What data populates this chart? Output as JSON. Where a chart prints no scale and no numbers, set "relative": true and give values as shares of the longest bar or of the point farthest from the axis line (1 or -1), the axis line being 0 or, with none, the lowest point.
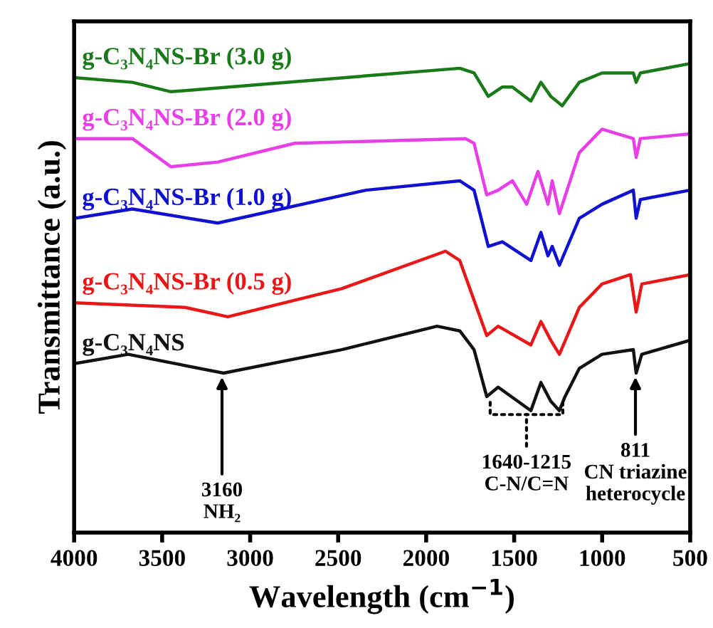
{
  "chart_data": {
    "type": "line",
    "relative": true,
    "xlabel": "Wavelength (cm$^{−1}$)",
    "ylabel": "Transmittance (a.u.)",
    "xlim": [
      4000,
      500
    ],
    "xticks": [
      4000,
      3500,
      3000,
      2500,
      2000,
      1500,
      1000,
      500
    ],
    "legend": false,
    "grid": false,
    "tick_labels": "x",
    "series": [
      {
        "name": "g-C₃N₄NS-Br (3.0 g)",
        "color": "#1a7a1a",
        "x": [
          4000,
          3669,
          3450,
          1809,
          1728,
          1647,
          1567,
          1510,
          1405,
          1348,
          1292,
          1227,
          1130,
          1001,
          823,
          807,
          783,
          500
        ],
        "values": [
          0.97,
          0.96,
          0.94,
          0.99,
          0.98,
          0.93,
          0.95,
          0.95,
          0.92,
          0.96,
          0.93,
          0.91,
          0.96,
          0.98,
          0.98,
          0.96,
          0.98,
          1.0
        ]
      },
      {
        "name": "g-C₃N₄NS-Br (2.0 g)",
        "color": "#e83ee8",
        "x": [
          4000,
          3669,
          3450,
          3184,
          2747,
          1777,
          1728,
          1656,
          1591,
          1510,
          1429,
          1365,
          1308,
          1284,
          1243,
          1130,
          1001,
          823,
          807,
          783,
          500
        ],
        "values": [
          0.84,
          0.84,
          0.78,
          0.79,
          0.83,
          0.84,
          0.83,
          0.72,
          0.73,
          0.75,
          0.7,
          0.77,
          0.7,
          0.75,
          0.68,
          0.81,
          0.86,
          0.84,
          0.8,
          0.84,
          0.85
        ]
      },
      {
        "name": "g-C₃N₄NS-Br (1.0 g)",
        "color": "#1010d0",
        "x": [
          4000,
          3669,
          3184,
          2343,
          1809,
          1728,
          1647,
          1567,
          1405,
          1348,
          1308,
          1284,
          1243,
          1130,
          1001,
          823,
          807,
          783,
          500
        ],
        "values": [
          0.67,
          0.69,
          0.66,
          0.73,
          0.75,
          0.73,
          0.61,
          0.62,
          0.58,
          0.64,
          0.59,
          0.61,
          0.57,
          0.67,
          0.7,
          0.73,
          0.67,
          0.71,
          0.73
        ]
      },
      {
        "name": "g-C₃N₄NS-Br (0.5 g)",
        "color": "#e81818",
        "x": [
          4000,
          3369,
          3127,
          2480,
          1890,
          1809,
          1656,
          1591,
          1405,
          1348,
          1292,
          1243,
          1130,
          1001,
          839,
          807,
          775,
          500
        ],
        "values": [
          0.49,
          0.48,
          0.46,
          0.52,
          0.6,
          0.58,
          0.42,
          0.44,
          0.4,
          0.45,
          0.41,
          0.38,
          0.48,
          0.53,
          0.55,
          0.47,
          0.53,
          0.55
        ]
      },
      {
        "name": "g-C₃N₄NS",
        "color": "#111111",
        "x": [
          4000,
          3693,
          3151,
          2480,
          1938,
          1809,
          1728,
          1656,
          1591,
          1405,
          1348,
          1292,
          1243,
          1211,
          1130,
          1001,
          823,
          807,
          775,
          500
        ],
        "values": [
          0.36,
          0.38,
          0.34,
          0.39,
          0.44,
          0.43,
          0.39,
          0.29,
          0.31,
          0.26,
          0.32,
          0.28,
          0.26,
          0.29,
          0.35,
          0.38,
          0.39,
          0.34,
          0.38,
          0.41
        ]
      }
    ],
    "annotations": [
      {
        "text": "3160\nNH₂",
        "x": 3160,
        "y": 0.34
      },
      {
        "text": "1640-1215\nC-N/C=N",
        "x": 1430,
        "y": 0.26
      },
      {
        "text": "811\nCN triazine\nheterocycle",
        "x": 811,
        "y": 0.34
      }
    ]
  }
}
